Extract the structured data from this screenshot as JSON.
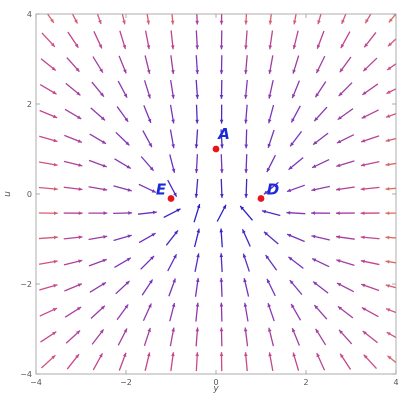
{
  "chart_data": {
    "type": "scatter",
    "title": "",
    "xlabel": "y",
    "ylabel": "u",
    "xlim": [
      -4,
      4
    ],
    "ylim": [
      -4,
      4
    ],
    "xticks": [
      -4,
      -2,
      0,
      2,
      4
    ],
    "yticks": [
      -4,
      -2,
      0,
      2,
      4
    ],
    "x_tick_labels": [
      "−4",
      "−2",
      "0",
      "2",
      "4"
    ],
    "y_tick_labels": [
      "−4",
      "−2",
      "0",
      "2",
      "4"
    ],
    "grid": false,
    "plot_style": "stream plot (vector field streamlines)",
    "equilibrium_points": [
      {
        "label": "A",
        "x": 0,
        "y": 1
      },
      {
        "label": "D",
        "x": 1,
        "y": -0.1
      },
      {
        "label": "E",
        "x": -1,
        "y": -0.1
      }
    ],
    "colors": {
      "point": "#e8141c",
      "point_label": "#1a2ad8",
      "stream_slow": "#2b1fc8",
      "stream_mid": "#7a35b8",
      "stream_fast": "#f5a623",
      "frame": "#999999"
    }
  }
}
